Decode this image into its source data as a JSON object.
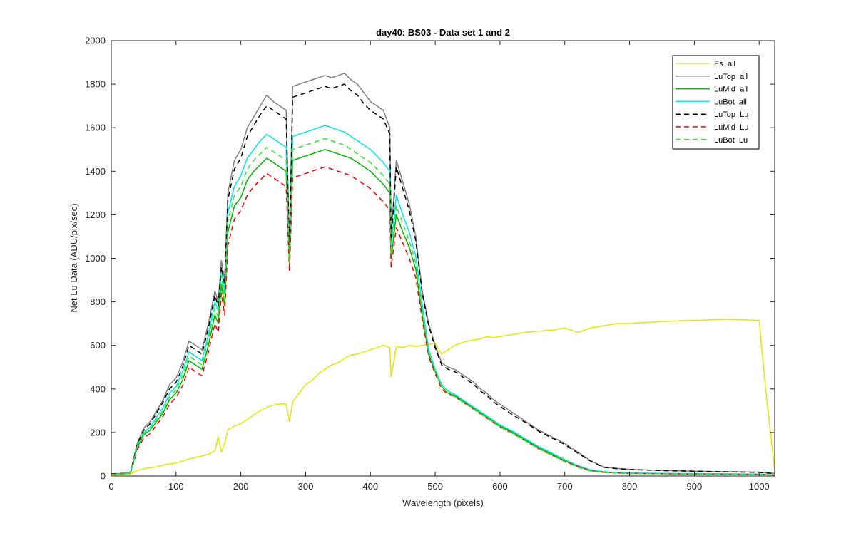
{
  "chart_data": {
    "type": "line",
    "title": "day40: BS03 - Data set 1 and 2",
    "xlabel": "Wavelength (pixels)",
    "ylabel": "Net Lu Data (ADU/pix/sec)",
    "xlim": [
      0,
      1024
    ],
    "ylim": [
      0,
      2000
    ],
    "xticks": [
      0,
      100,
      200,
      300,
      400,
      500,
      600,
      700,
      800,
      900,
      1000
    ],
    "yticks": [
      0,
      200,
      400,
      600,
      800,
      1000,
      1200,
      1400,
      1600,
      1800,
      2000
    ],
    "grid": false,
    "legend_position": "top-right",
    "x": [
      0,
      20,
      30,
      40,
      50,
      60,
      70,
      80,
      90,
      100,
      110,
      120,
      130,
      140,
      150,
      160,
      165,
      170,
      175,
      180,
      190,
      200,
      210,
      220,
      230,
      240,
      250,
      260,
      270,
      275,
      280,
      290,
      300,
      310,
      320,
      330,
      340,
      350,
      360,
      370,
      380,
      390,
      400,
      410,
      420,
      430,
      432,
      440,
      450,
      460,
      470,
      480,
      490,
      500,
      510,
      520,
      530,
      540,
      550,
      560,
      570,
      580,
      590,
      600,
      620,
      640,
      660,
      680,
      700,
      720,
      740,
      760,
      780,
      800,
      850,
      900,
      950,
      1000,
      1010,
      1024
    ],
    "series": [
      {
        "name": "Es  all",
        "color": "#e6e600",
        "dash": "solid",
        "values": [
          5,
          6,
          10,
          25,
          33,
          38,
          42,
          50,
          55,
          60,
          68,
          78,
          85,
          92,
          100,
          115,
          180,
          110,
          150,
          210,
          230,
          240,
          260,
          280,
          300,
          315,
          325,
          332,
          330,
          250,
          340,
          380,
          420,
          440,
          470,
          490,
          510,
          520,
          540,
          555,
          560,
          570,
          580,
          590,
          600,
          590,
          455,
          595,
          590,
          600,
          595,
          600,
          605,
          610,
          560,
          580,
          600,
          610,
          620,
          625,
          630,
          640,
          635,
          640,
          650,
          660,
          665,
          670,
          680,
          660,
          680,
          690,
          700,
          700,
          710,
          715,
          720,
          715,
          400,
          30
        ]
      },
      {
        "name": "LuTop  all",
        "color": "#808080",
        "dash": "solid",
        "values": [
          10,
          12,
          18,
          150,
          220,
          250,
          300,
          350,
          420,
          450,
          520,
          620,
          600,
          580,
          700,
          850,
          800,
          990,
          900,
          1300,
          1450,
          1500,
          1600,
          1650,
          1700,
          1750,
          1720,
          1700,
          1680,
          1050,
          1790,
          1800,
          1810,
          1820,
          1830,
          1840,
          1830,
          1840,
          1850,
          1820,
          1800,
          1760,
          1720,
          1700,
          1680,
          1600,
          1100,
          1450,
          1350,
          1250,
          1100,
          850,
          700,
          600,
          520,
          500,
          490,
          470,
          450,
          430,
          400,
          380,
          350,
          330,
          290,
          250,
          210,
          180,
          150,
          110,
          70,
          42,
          35,
          30,
          26,
          22,
          20,
          18,
          14,
          12
        ]
      },
      {
        "name": "LuMid  all",
        "color": "#00b400",
        "dash": "solid",
        "values": [
          8,
          10,
          15,
          130,
          190,
          210,
          250,
          290,
          350,
          380,
          440,
          530,
          510,
          490,
          600,
          740,
          700,
          880,
          780,
          1120,
          1240,
          1280,
          1360,
          1400,
          1430,
          1460,
          1440,
          1420,
          1400,
          960,
          1450,
          1460,
          1470,
          1480,
          1490,
          1500,
          1490,
          1480,
          1470,
          1460,
          1440,
          1420,
          1400,
          1370,
          1340,
          1300,
          1000,
          1200,
          1120,
          1050,
          950,
          740,
          560,
          480,
          410,
          380,
          370,
          350,
          330,
          310,
          290,
          270,
          250,
          230,
          200,
          165,
          130,
          100,
          70,
          45,
          25,
          18,
          15,
          13,
          11,
          10,
          9,
          8,
          6,
          5
        ]
      },
      {
        "name": "LuBot  all",
        "color": "#00e6e6",
        "dash": "solid",
        "values": [
          8,
          10,
          15,
          140,
          200,
          225,
          270,
          315,
          380,
          410,
          480,
          570,
          550,
          530,
          650,
          800,
          760,
          950,
          840,
          1210,
          1330,
          1380,
          1460,
          1500,
          1540,
          1570,
          1550,
          1530,
          1510,
          1000,
          1560,
          1570,
          1580,
          1590,
          1600,
          1610,
          1600,
          1590,
          1580,
          1560,
          1540,
          1520,
          1500,
          1470,
          1440,
          1400,
          1050,
          1290,
          1200,
          1120,
          1010,
          790,
          580,
          490,
          420,
          390,
          375,
          355,
          335,
          315,
          295,
          275,
          255,
          235,
          205,
          170,
          135,
          105,
          75,
          48,
          28,
          20,
          16,
          14,
          12,
          11,
          10,
          9,
          7,
          6
        ]
      },
      {
        "name": "LuTop  Lu",
        "color": "#000000",
        "dash": "dashed",
        "values": [
          10,
          12,
          18,
          145,
          210,
          240,
          290,
          340,
          400,
          430,
          500,
          600,
          580,
          560,
          680,
          830,
          780,
          960,
          880,
          1270,
          1410,
          1460,
          1560,
          1610,
          1660,
          1700,
          1680,
          1660,
          1640,
          1030,
          1740,
          1750,
          1760,
          1770,
          1780,
          1790,
          1780,
          1790,
          1800,
          1770,
          1750,
          1710,
          1680,
          1660,
          1640,
          1570,
          1080,
          1420,
          1320,
          1220,
          1080,
          840,
          690,
          590,
          510,
          490,
          480,
          460,
          440,
          420,
          390,
          370,
          340,
          320,
          280,
          245,
          205,
          175,
          145,
          105,
          68,
          40,
          34,
          30,
          25,
          22,
          19,
          17,
          14,
          12
        ]
      },
      {
        "name": "LuMid  Lu",
        "color": "#ff0000",
        "dash": "dashed",
        "values": [
          8,
          10,
          14,
          120,
          175,
          195,
          235,
          275,
          330,
          360,
          415,
          500,
          480,
          460,
          570,
          700,
          660,
          840,
          740,
          1060,
          1180,
          1220,
          1290,
          1330,
          1360,
          1390,
          1370,
          1350,
          1330,
          940,
          1370,
          1380,
          1390,
          1400,
          1410,
          1420,
          1410,
          1400,
          1390,
          1380,
          1360,
          1340,
          1320,
          1290,
          1260,
          1220,
          960,
          1140,
          1070,
          1000,
          910,
          720,
          550,
          470,
          400,
          375,
          365,
          345,
          325,
          305,
          285,
          265,
          245,
          225,
          195,
          160,
          125,
          95,
          68,
          44,
          24,
          17,
          14,
          12,
          10,
          9,
          8,
          7,
          6,
          5
        ]
      },
      {
        "name": "LuBot  Lu",
        "color": "#33e633",
        "dash": "dashed",
        "values": [
          8,
          10,
          15,
          135,
          195,
          215,
          260,
          300,
          365,
          395,
          460,
          550,
          530,
          510,
          630,
          770,
          730,
          920,
          810,
          1170,
          1290,
          1330,
          1410,
          1450,
          1480,
          1510,
          1490,
          1470,
          1450,
          980,
          1500,
          1510,
          1520,
          1530,
          1540,
          1550,
          1540,
          1530,
          1520,
          1500,
          1480,
          1460,
          1440,
          1410,
          1380,
          1340,
          1020,
          1240,
          1160,
          1080,
          980,
          760,
          565,
          480,
          410,
          380,
          365,
          345,
          325,
          305,
          285,
          265,
          245,
          225,
          195,
          160,
          125,
          95,
          65,
          40,
          22,
          16,
          13,
          11,
          10,
          9,
          8,
          7,
          6,
          5
        ]
      }
    ]
  }
}
